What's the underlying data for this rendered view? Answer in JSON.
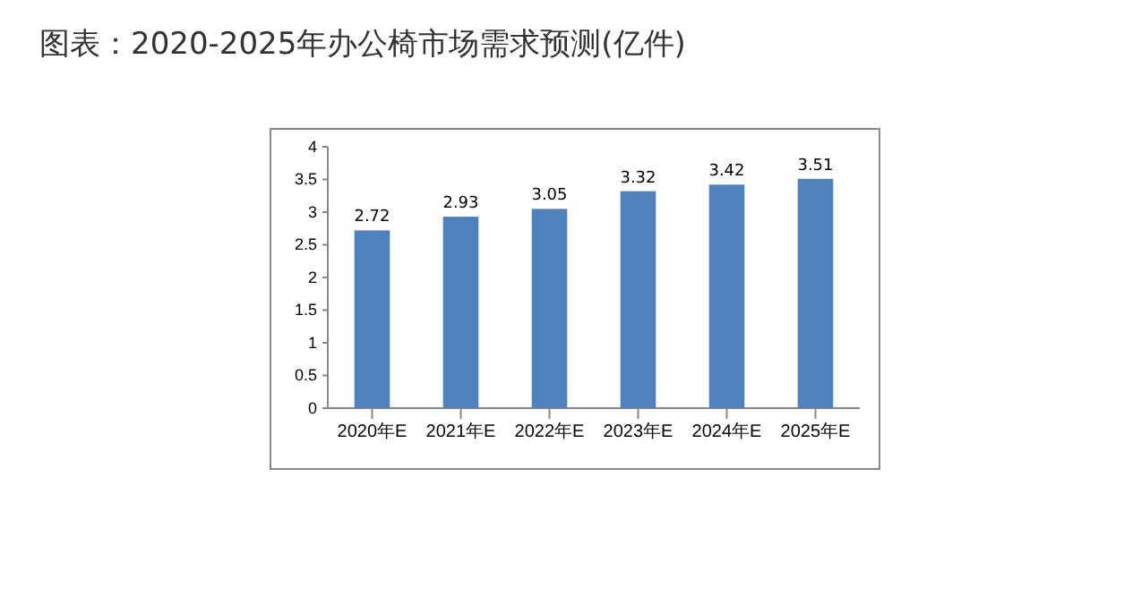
{
  "chart_data": {
    "type": "bar",
    "title": "图表：2020-2025年办公椅市场需求预测(亿件)",
    "categories": [
      "2020年E",
      "2021年E",
      "2022年E",
      "2023年E",
      "2024年E",
      "2025年E"
    ],
    "values": [
      2.72,
      2.93,
      3.05,
      3.32,
      3.42,
      3.51
    ],
    "color": "#4f81bd",
    "ylim": [
      0,
      4
    ],
    "yticks": [
      0,
      0.5,
      1,
      1.5,
      2,
      2.5,
      3,
      3.5,
      4
    ],
    "data_labels": true
  }
}
